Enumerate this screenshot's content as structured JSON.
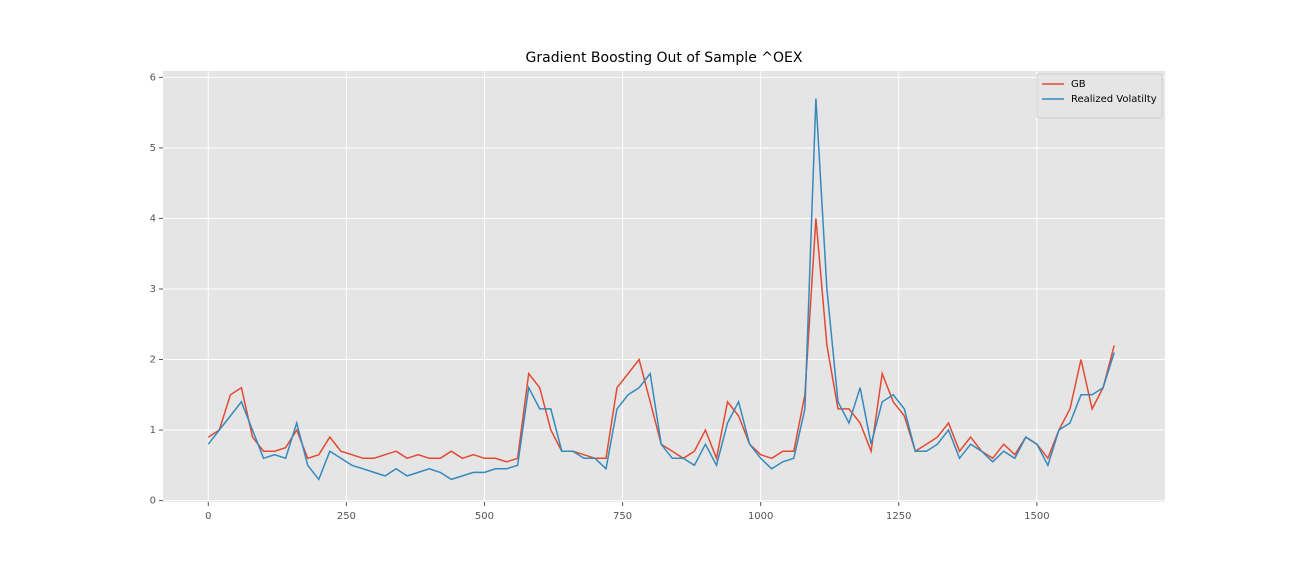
{
  "chart_data": {
    "type": "line",
    "title": "Gradient Boosting Out of Sample ^OEX",
    "x": [
      0,
      20,
      40,
      60,
      80,
      100,
      120,
      140,
      160,
      180,
      200,
      220,
      240,
      260,
      280,
      300,
      320,
      340,
      360,
      380,
      400,
      420,
      440,
      460,
      480,
      500,
      520,
      540,
      560,
      580,
      600,
      620,
      640,
      660,
      680,
      700,
      720,
      740,
      760,
      780,
      800,
      820,
      840,
      860,
      880,
      900,
      920,
      940,
      960,
      980,
      1000,
      1020,
      1040,
      1060,
      1080,
      1100,
      1120,
      1140,
      1160,
      1180,
      1200,
      1220,
      1240,
      1260,
      1280,
      1300,
      1320,
      1340,
      1360,
      1380,
      1400,
      1420,
      1440,
      1460,
      1480,
      1500,
      1520,
      1540,
      1560,
      1580,
      1600,
      1620,
      1640
    ],
    "series": [
      {
        "name": "GB",
        "color": "#e24a33",
        "values": [
          0.9,
          1.0,
          1.5,
          1.6,
          0.9,
          0.7,
          0.7,
          0.75,
          1.0,
          0.6,
          0.65,
          0.9,
          0.7,
          0.65,
          0.6,
          0.6,
          0.65,
          0.7,
          0.6,
          0.65,
          0.6,
          0.6,
          0.7,
          0.6,
          0.65,
          0.6,
          0.6,
          0.55,
          0.6,
          1.8,
          1.6,
          1.0,
          0.7,
          0.7,
          0.65,
          0.6,
          0.6,
          1.6,
          1.8,
          2.0,
          1.4,
          0.8,
          0.7,
          0.6,
          0.7,
          1.0,
          0.6,
          1.4,
          1.2,
          0.8,
          0.65,
          0.6,
          0.7,
          0.7,
          1.5,
          4.0,
          2.2,
          1.3,
          1.3,
          1.1,
          0.7,
          1.8,
          1.4,
          1.2,
          0.7,
          0.8,
          0.9,
          1.1,
          0.7,
          0.9,
          0.7,
          0.6,
          0.8,
          0.65,
          0.9,
          0.8,
          0.6,
          1.0,
          1.3,
          2.0,
          1.3,
          1.6,
          2.2
        ]
      },
      {
        "name": "Realized Volatilty",
        "color": "#348abd",
        "values": [
          0.8,
          1.0,
          1.2,
          1.4,
          1.0,
          0.6,
          0.65,
          0.6,
          1.1,
          0.5,
          0.3,
          0.7,
          0.6,
          0.5,
          0.45,
          0.4,
          0.35,
          0.45,
          0.35,
          0.4,
          0.45,
          0.4,
          0.3,
          0.35,
          0.4,
          0.4,
          0.45,
          0.45,
          0.5,
          1.6,
          1.3,
          1.3,
          0.7,
          0.7,
          0.6,
          0.6,
          0.45,
          1.3,
          1.5,
          1.6,
          1.8,
          0.8,
          0.6,
          0.6,
          0.5,
          0.8,
          0.5,
          1.1,
          1.4,
          0.8,
          0.6,
          0.45,
          0.55,
          0.6,
          1.3,
          5.7,
          3.0,
          1.4,
          1.1,
          1.6,
          0.8,
          1.4,
          1.5,
          1.3,
          0.7,
          0.7,
          0.8,
          1.0,
          0.6,
          0.8,
          0.7,
          0.55,
          0.7,
          0.6,
          0.9,
          0.8,
          0.5,
          1.0,
          1.1,
          1.5,
          1.5,
          1.6,
          2.1
        ]
      }
    ],
    "xlim": [
      -82,
      1732
    ],
    "ylim": [
      -0.02,
      6.09
    ],
    "xticks": [
      0,
      250,
      500,
      750,
      1000,
      1250,
      1500
    ],
    "yticks": [
      0,
      1,
      2,
      3,
      4,
      5,
      6
    ],
    "grid": true,
    "legend": "upper-right"
  }
}
